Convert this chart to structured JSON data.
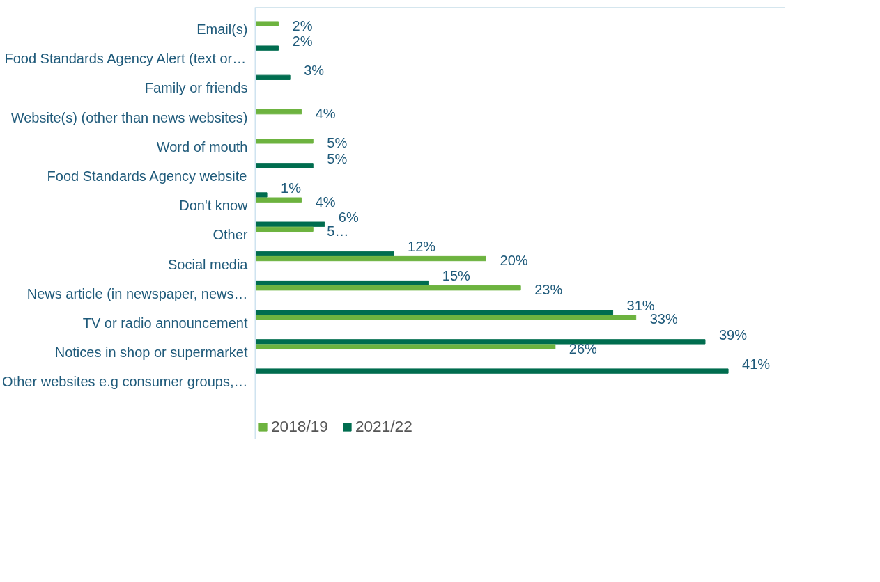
{
  "chart_data": {
    "type": "bar",
    "orientation": "horizontal",
    "categories": [
      "Email(s)",
      "Food Standards Agency Alert (text or…",
      "Family or friends",
      "Website(s) (other than news websites)",
      "Word of mouth",
      "Food Standards Agency website",
      "Don't know",
      "Other",
      "Social media",
      "News article (in newspaper, news…",
      "TV or radio announcement",
      "Notices in shop or supermarket",
      "Other websites e.g consumer groups,…"
    ],
    "series": [
      {
        "name": "2021/22",
        "color": "#006d4f",
        "values": [
          null,
          2,
          3,
          null,
          null,
          5,
          1,
          6,
          12,
          15,
          31,
          39,
          41
        ],
        "value_labels": [
          null,
          "2%",
          "3%",
          null,
          null,
          "5%",
          "1%",
          "6%",
          "12%",
          "15%",
          "31%",
          "39%",
          "41%"
        ]
      },
      {
        "name": "2018/19",
        "color": "#6db33f",
        "values": [
          2,
          null,
          null,
          4,
          5,
          null,
          4,
          5,
          20,
          23,
          33,
          26,
          null
        ],
        "value_labels": [
          "2%",
          null,
          null,
          "4%",
          "5%",
          null,
          "4%",
          "5…",
          "20%",
          "23%",
          "33%",
          "26%",
          null
        ]
      }
    ],
    "legend": "bottom left",
    "tick_labels": "y",
    "grid": false
  }
}
